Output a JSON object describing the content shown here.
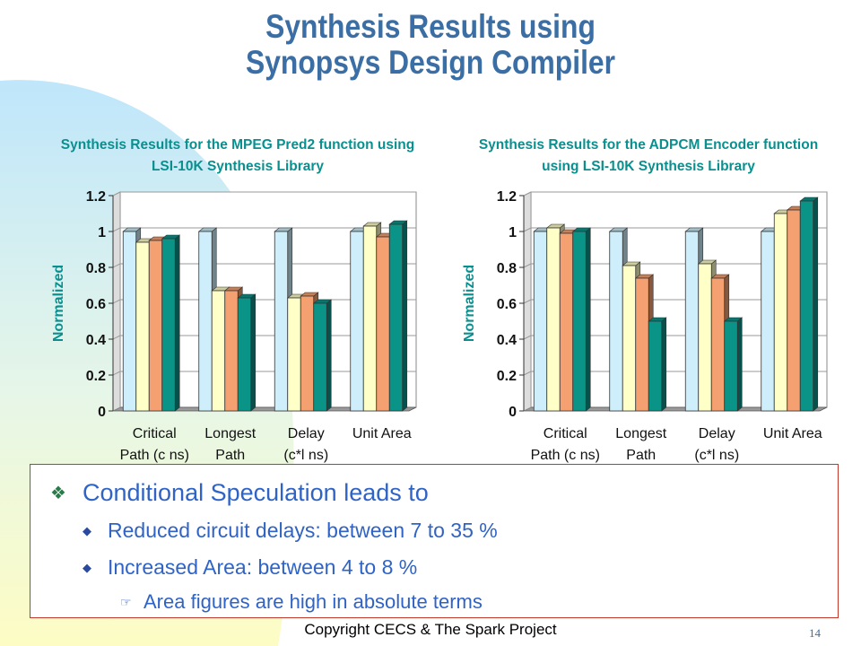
{
  "slide": {
    "title_line1": "Synthesis Results using",
    "title_line2": "Synopsys Design Compiler",
    "footer": "Copyright CECS & The Spark Project",
    "page_number": "14"
  },
  "bullets": {
    "main": "Conditional Speculation leads to",
    "sub1": "Reduced circuit delays: between 7 to 35 %",
    "sub2": "Increased Area: between 4 to 8 %",
    "subsub1": "Area figures are high in absolute terms"
  },
  "colors": {
    "title": "#3a6ea5",
    "chart_title": "#0a8f8f",
    "bullet_text": "#2f63c6",
    "series": [
      "#cdeefa",
      "#ffffc8",
      "#f4a070",
      "#0a9488"
    ]
  },
  "chart_data": [
    {
      "type": "bar",
      "title_lines": [
        "Synthesis Results for the MPEG Pred2 function using",
        "LSI-10K Synthesis Library"
      ],
      "ylabel": "Normalized",
      "ylim": [
        0,
        1.2
      ],
      "yticks": [
        "0",
        "0.2",
        "0.4",
        "0.6",
        "0.8",
        "1",
        "1.2"
      ],
      "grid": true,
      "categories": [
        [
          "Critical",
          "Path (c ns)"
        ],
        [
          "Longest",
          "Path"
        ],
        [
          "Delay",
          "(c*l ns)"
        ],
        [
          "Unit Area"
        ]
      ],
      "series": [
        {
          "values": [
            1.0,
            1.0,
            1.0,
            1.0
          ]
        },
        {
          "values": [
            0.94,
            0.67,
            0.63,
            1.03
          ]
        },
        {
          "values": [
            0.95,
            0.67,
            0.64,
            0.97
          ]
        },
        {
          "values": [
            0.96,
            0.63,
            0.6,
            1.04
          ]
        }
      ]
    },
    {
      "type": "bar",
      "title_lines": [
        "Synthesis Results for the ADPCM Encoder function",
        "using LSI-10K Synthesis Library"
      ],
      "ylabel": "Normalized",
      "ylim": [
        0,
        1.2
      ],
      "yticks": [
        "0",
        "0.2",
        "0.4",
        "0.6",
        "0.8",
        "1",
        "1.2"
      ],
      "grid": true,
      "categories": [
        [
          "Critical",
          "Path (c ns)"
        ],
        [
          "Longest",
          "Path"
        ],
        [
          "Delay",
          "(c*l ns)"
        ],
        [
          "Unit Area"
        ]
      ],
      "series": [
        {
          "values": [
            1.0,
            1.0,
            1.0,
            1.0
          ]
        },
        {
          "values": [
            1.02,
            0.81,
            0.82,
            1.1
          ]
        },
        {
          "values": [
            0.99,
            0.74,
            0.74,
            1.12
          ]
        },
        {
          "values": [
            1.0,
            0.5,
            0.5,
            1.17
          ]
        }
      ]
    }
  ]
}
